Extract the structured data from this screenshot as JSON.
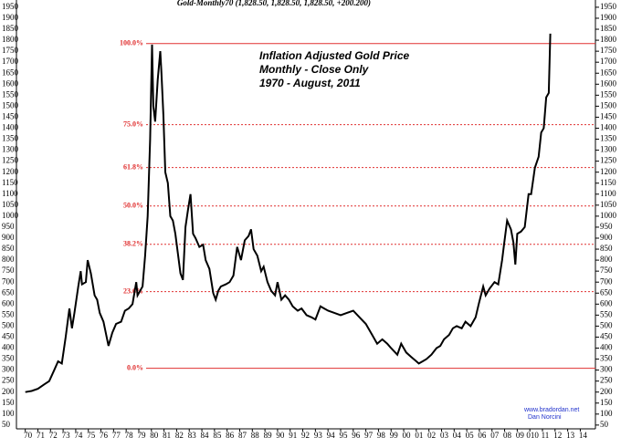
{
  "chart_data": {
    "type": "line",
    "title": "Gold-Monthly70 (1,828.50, 1,828.50, 1,828.50, +200.200)",
    "annotations": [
      "Inflation Adjusted Gold Price",
      "Monthly - Close Only",
      "1970 - August, 2011"
    ],
    "credits": [
      "www.bradordan.net",
      "Dan Norcini"
    ],
    "color": "#000000",
    "level_color": "#e03030",
    "x": [
      1970.0,
      1970.5,
      1971.0,
      1971.5,
      1971.9,
      1972.3,
      1972.6,
      1972.9,
      1973.2,
      1973.5,
      1973.7,
      1973.9,
      1974.2,
      1974.4,
      1974.5,
      1974.8,
      1974.95,
      1975.2,
      1975.5,
      1975.7,
      1975.9,
      1976.2,
      1976.6,
      1976.9,
      1977.2,
      1977.6,
      1977.9,
      1978.2,
      1978.5,
      1978.8,
      1978.9,
      1979.3,
      1979.5,
      1979.7,
      1979.9,
      1980.05,
      1980.15,
      1980.3,
      1980.5,
      1980.7,
      1980.8,
      1980.95,
      1981.1,
      1981.3,
      1981.5,
      1981.7,
      1981.9,
      1982.3,
      1982.5,
      1982.7,
      1982.9,
      1983.1,
      1983.3,
      1983.5,
      1983.8,
      1984.1,
      1984.3,
      1984.6,
      1984.9,
      1985.1,
      1985.3,
      1985.5,
      1985.9,
      1986.2,
      1986.5,
      1986.8,
      1987.1,
      1987.4,
      1987.7,
      1987.9,
      1988.1,
      1988.4,
      1988.7,
      1988.9,
      1989.2,
      1989.5,
      1989.8,
      1990.0,
      1990.3,
      1990.6,
      1990.9,
      1991.2,
      1991.6,
      1991.9,
      1992.3,
      1992.7,
      1993.0,
      1993.4,
      1993.7,
      1994.0,
      1994.5,
      1995.0,
      1995.5,
      1996.0,
      1996.5,
      1997.0,
      1997.5,
      1997.9,
      1998.3,
      1998.7,
      1999.0,
      1999.5,
      1999.8,
      2000.2,
      2000.6,
      2001.0,
      2001.2,
      2001.5,
      2001.8,
      2002.2,
      2002.6,
      2002.9,
      2003.2,
      2003.6,
      2003.9,
      2004.2,
      2004.6,
      2004.9,
      2005.3,
      2005.7,
      2005.95,
      2006.3,
      2006.5,
      2006.8,
      2007.2,
      2007.5,
      2007.8,
      2007.95,
      2008.2,
      2008.5,
      2008.7,
      2008.85,
      2009.0,
      2009.3,
      2009.6,
      2009.9,
      2010.1,
      2010.4,
      2010.7,
      2010.9,
      2011.1,
      2011.3,
      2011.5,
      2011.62
    ],
    "values": [
      200,
      205,
      215,
      235,
      250,
      300,
      340,
      330,
      450,
      580,
      490,
      560,
      680,
      750,
      690,
      700,
      800,
      740,
      640,
      620,
      560,
      520,
      410,
      470,
      510,
      520,
      570,
      580,
      600,
      700,
      640,
      680,
      820,
      1000,
      1350,
      1780,
      1500,
      1430,
      1620,
      1750,
      1650,
      1460,
      1200,
      1150,
      1000,
      980,
      920,
      740,
      710,
      950,
      1030,
      1100,
      920,
      900,
      860,
      870,
      800,
      760,
      650,
      620,
      660,
      680,
      690,
      700,
      730,
      860,
      800,
      890,
      910,
      940,
      850,
      820,
      750,
      770,
      700,
      660,
      640,
      700,
      620,
      640,
      620,
      590,
      570,
      580,
      550,
      540,
      530,
      590,
      580,
      570,
      560,
      550,
      560,
      570,
      540,
      510,
      460,
      420,
      440,
      420,
      400,
      370,
      420,
      380,
      360,
      340,
      330,
      340,
      350,
      370,
      400,
      410,
      440,
      460,
      490,
      500,
      490,
      520,
      500,
      540,
      600,
      680,
      640,
      670,
      700,
      690,
      800,
      870,
      980,
      940,
      880,
      780,
      920,
      930,
      950,
      1100,
      1100,
      1220,
      1270,
      1380,
      1400,
      1540,
      1560,
      1830
    ],
    "levels": [
      {
        "value": 1785,
        "label": "100.0%"
      },
      {
        "value": 1416,
        "label": "75.0%"
      },
      {
        "value": 1221,
        "label": "61.8%"
      },
      {
        "value": 1046,
        "label": "50.0%"
      },
      {
        "value": 872,
        "label": "38.2%"
      },
      {
        "value": 657,
        "label": "23.6%"
      },
      {
        "value": 308,
        "label": "0.0%"
      }
    ],
    "ylim": [
      37,
      1958
    ],
    "yticks": [
      50,
      100,
      150,
      200,
      250,
      300,
      350,
      400,
      450,
      500,
      550,
      600,
      650,
      700,
      750,
      800,
      850,
      900,
      950,
      1000,
      1050,
      1100,
      1150,
      1200,
      1250,
      1300,
      1350,
      1400,
      1450,
      1500,
      1550,
      1600,
      1650,
      1700,
      1750,
      1800,
      1850,
      1900,
      1950
    ],
    "xlim": [
      1969.3,
      2015.2
    ],
    "xticks": [
      {
        "value": 1970,
        "label": "70"
      },
      {
        "value": 1971,
        "label": "71"
      },
      {
        "value": 1972,
        "label": "72"
      },
      {
        "value": 1973,
        "label": "73"
      },
      {
        "value": 1974,
        "label": "74"
      },
      {
        "value": 1975,
        "label": "75"
      },
      {
        "value": 1976,
        "label": "76"
      },
      {
        "value": 1977,
        "label": "77"
      },
      {
        "value": 1978,
        "label": "78"
      },
      {
        "value": 1979,
        "label": "79"
      },
      {
        "value": 1980,
        "label": "80"
      },
      {
        "value": 1981,
        "label": "81"
      },
      {
        "value": 1982,
        "label": "82"
      },
      {
        "value": 1983,
        "label": "83"
      },
      {
        "value": 1984,
        "label": "84"
      },
      {
        "value": 1985,
        "label": "85"
      },
      {
        "value": 1986,
        "label": "86"
      },
      {
        "value": 1987,
        "label": "87"
      },
      {
        "value": 1988,
        "label": "88"
      },
      {
        "value": 1989,
        "label": "89"
      },
      {
        "value": 1990,
        "label": "90"
      },
      {
        "value": 1991,
        "label": "91"
      },
      {
        "value": 1992,
        "label": "92"
      },
      {
        "value": 1993,
        "label": "93"
      },
      {
        "value": 1994,
        "label": "94"
      },
      {
        "value": 1995,
        "label": "95"
      },
      {
        "value": 1996,
        "label": "96"
      },
      {
        "value": 1997,
        "label": "97"
      },
      {
        "value": 1998,
        "label": "98"
      },
      {
        "value": 1999,
        "label": "99"
      },
      {
        "value": 2000,
        "label": "00"
      },
      {
        "value": 2001,
        "label": "01"
      },
      {
        "value": 2002,
        "label": "02"
      },
      {
        "value": 2003,
        "label": "03"
      },
      {
        "value": 2004,
        "label": "04"
      },
      {
        "value": 2005,
        "label": "05"
      },
      {
        "value": 2006,
        "label": "06"
      },
      {
        "value": 2007,
        "label": "07"
      },
      {
        "value": 2008,
        "label": "08"
      },
      {
        "value": 2009,
        "label": "09"
      },
      {
        "value": 2010,
        "label": "010"
      },
      {
        "value": 2011,
        "label": "11"
      },
      {
        "value": 2012,
        "label": "12"
      },
      {
        "value": 2013,
        "label": "13"
      },
      {
        "value": 2014,
        "label": "14"
      }
    ]
  }
}
